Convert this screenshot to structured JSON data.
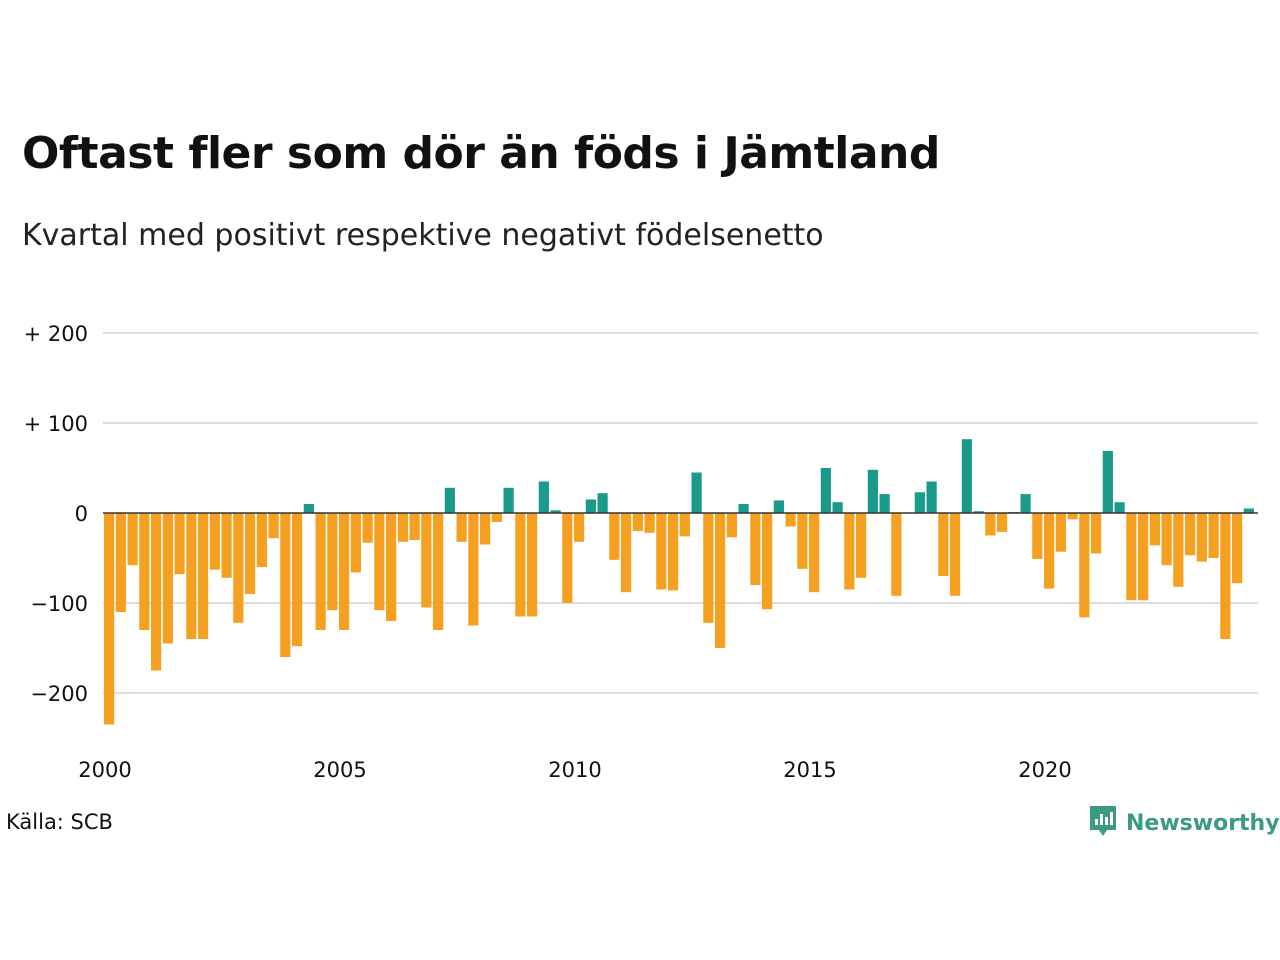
{
  "header": {
    "title": "Oftast fler som dör än föds i Jämtland",
    "subtitle": "Kvartal med positivt respektive negativt födelsenetto"
  },
  "footer": {
    "source": "Källa: SCB",
    "brand": "Newsworthy"
  },
  "colors": {
    "positive": "#1a9a8a",
    "negative": "#f5a020",
    "grid": "#dddddd",
    "zero_line": "#333333",
    "brand": "#3a9a82"
  },
  "chart_data": {
    "type": "bar",
    "title": "Oftast fler som dör än föds i Jämtland",
    "subtitle": "Kvartal med positivt respektive negativt födelsenetto",
    "x_start": 2000.0,
    "x_step": 0.25,
    "x_ticks": [
      2000,
      2005,
      2010,
      2015,
      2020
    ],
    "x_tick_labels": [
      "2000",
      "2005",
      "2010",
      "2015",
      "2020"
    ],
    "y_ticks": [
      200,
      100,
      0,
      -100,
      -200
    ],
    "y_tick_labels": [
      "+ 200",
      "+ 100",
      "0",
      "−100",
      "−200"
    ],
    "ylim": [
      -235,
      200
    ],
    "grid": true,
    "values": [
      -235,
      -110,
      -58,
      -130,
      -175,
      -145,
      -68,
      -140,
      -140,
      -63,
      -72,
      -122,
      -90,
      -60,
      -28,
      -160,
      -148,
      10,
      -130,
      -108,
      -130,
      -66,
      -33,
      -108,
      -120,
      -32,
      -30,
      -105,
      -130,
      28,
      -32,
      -125,
      -35,
      -10,
      28,
      -115,
      -115,
      35,
      3,
      -100,
      -32,
      15,
      22,
      -52,
      -88,
      -20,
      -22,
      -85,
      -86,
      -26,
      45,
      -122,
      -150,
      -27,
      10,
      -80,
      -107,
      14,
      -15,
      -62,
      -88,
      50,
      12,
      -85,
      -72,
      48,
      21,
      -92,
      0,
      23,
      35,
      -70,
      -92,
      82,
      2,
      -25,
      -21,
      1,
      21,
      -51,
      -84,
      -43,
      -7,
      -116,
      -45,
      69,
      12,
      -97,
      -97,
      -36,
      -58,
      -82,
      -47,
      -54,
      -50,
      -140,
      -78,
      5
    ]
  }
}
